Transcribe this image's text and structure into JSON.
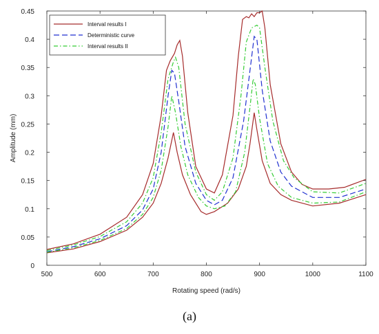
{
  "caption": "(a)",
  "chart_data": {
    "type": "line",
    "xlabel": "Rotating speed (rad/s)",
    "ylabel": "Amplitude (mm)",
    "xlim": [
      500,
      1100
    ],
    "ylim": [
      0,
      0.45
    ],
    "xticks": [
      500,
      600,
      700,
      800,
      900,
      1000,
      1100
    ],
    "yticks": [
      0,
      0.05,
      0.1,
      0.15,
      0.2,
      0.25,
      0.3,
      0.35,
      0.4,
      0.45
    ],
    "xtick_labels": [
      "500",
      "600",
      "700",
      "800",
      "900",
      "1000",
      "1100"
    ],
    "ytick_labels": [
      "0",
      "0.05",
      "0.1",
      "0.15",
      "0.2",
      "0.25",
      "0.3",
      "0.35",
      "0.4",
      "0.45"
    ],
    "grid": false,
    "legend_position": "top-left",
    "legend": [
      {
        "label": "Interval results I",
        "color": "#a52a2a",
        "style": "solid"
      },
      {
        "label": "Deterministic curve",
        "color": "#1f2fd0",
        "style": "dashed"
      },
      {
        "label": "Interval results II",
        "color": "#33cc33",
        "style": "dashdot"
      }
    ],
    "series": [
      {
        "name": "Interval results I",
        "bound": "upper",
        "color": "#a52a2a",
        "style": "solid",
        "points": [
          [
            500,
            0.028
          ],
          [
            550,
            0.038
          ],
          [
            600,
            0.055
          ],
          [
            650,
            0.085
          ],
          [
            680,
            0.125
          ],
          [
            700,
            0.18
          ],
          [
            715,
            0.265
          ],
          [
            725,
            0.345
          ],
          [
            732,
            0.362
          ],
          [
            740,
            0.375
          ],
          [
            745,
            0.39
          ],
          [
            750,
            0.398
          ],
          [
            755,
            0.37
          ],
          [
            765,
            0.27
          ],
          [
            780,
            0.175
          ],
          [
            800,
            0.135
          ],
          [
            815,
            0.128
          ],
          [
            830,
            0.16
          ],
          [
            850,
            0.265
          ],
          [
            860,
            0.37
          ],
          [
            868,
            0.435
          ],
          [
            875,
            0.44
          ],
          [
            880,
            0.438
          ],
          [
            885,
            0.445
          ],
          [
            890,
            0.44
          ],
          [
            895,
            0.447
          ],
          [
            900,
            0.447
          ],
          [
            905,
            0.45
          ],
          [
            910,
            0.42
          ],
          [
            920,
            0.32
          ],
          [
            940,
            0.215
          ],
          [
            960,
            0.165
          ],
          [
            980,
            0.143
          ],
          [
            1000,
            0.135
          ],
          [
            1030,
            0.135
          ],
          [
            1060,
            0.138
          ],
          [
            1100,
            0.152
          ]
        ]
      },
      {
        "name": "Interval results I",
        "bound": "lower",
        "color": "#a52a2a",
        "style": "solid",
        "points": [
          [
            500,
            0.022
          ],
          [
            550,
            0.029
          ],
          [
            600,
            0.042
          ],
          [
            650,
            0.062
          ],
          [
            680,
            0.085
          ],
          [
            700,
            0.11
          ],
          [
            715,
            0.145
          ],
          [
            728,
            0.19
          ],
          [
            738,
            0.235
          ],
          [
            745,
            0.2
          ],
          [
            755,
            0.16
          ],
          [
            770,
            0.125
          ],
          [
            790,
            0.095
          ],
          [
            800,
            0.09
          ],
          [
            815,
            0.095
          ],
          [
            840,
            0.11
          ],
          [
            860,
            0.135
          ],
          [
            875,
            0.175
          ],
          [
            882,
            0.215
          ],
          [
            890,
            0.27
          ],
          [
            895,
            0.24
          ],
          [
            905,
            0.185
          ],
          [
            920,
            0.145
          ],
          [
            940,
            0.125
          ],
          [
            960,
            0.115
          ],
          [
            1000,
            0.105
          ],
          [
            1050,
            0.11
          ],
          [
            1100,
            0.125
          ]
        ]
      },
      {
        "name": "Deterministic curve",
        "color": "#1f2fd0",
        "style": "dashed",
        "points": [
          [
            500,
            0.024
          ],
          [
            550,
            0.033
          ],
          [
            600,
            0.047
          ],
          [
            650,
            0.07
          ],
          [
            680,
            0.098
          ],
          [
            700,
            0.135
          ],
          [
            715,
            0.2
          ],
          [
            728,
            0.3
          ],
          [
            735,
            0.345
          ],
          [
            740,
            0.34
          ],
          [
            748,
            0.29
          ],
          [
            760,
            0.21
          ],
          [
            780,
            0.145
          ],
          [
            800,
            0.115
          ],
          [
            815,
            0.107
          ],
          [
            830,
            0.115
          ],
          [
            850,
            0.155
          ],
          [
            870,
            0.255
          ],
          [
            882,
            0.345
          ],
          [
            890,
            0.405
          ],
          [
            895,
            0.4
          ],
          [
            905,
            0.31
          ],
          [
            920,
            0.22
          ],
          [
            940,
            0.165
          ],
          [
            960,
            0.14
          ],
          [
            1000,
            0.12
          ],
          [
            1050,
            0.12
          ],
          [
            1100,
            0.135
          ]
        ]
      },
      {
        "name": "Interval results II",
        "bound": "upper",
        "color": "#33cc33",
        "style": "dashdot",
        "points": [
          [
            500,
            0.026
          ],
          [
            550,
            0.036
          ],
          [
            600,
            0.051
          ],
          [
            650,
            0.077
          ],
          [
            680,
            0.11
          ],
          [
            700,
            0.155
          ],
          [
            715,
            0.235
          ],
          [
            728,
            0.33
          ],
          [
            738,
            0.36
          ],
          [
            742,
            0.368
          ],
          [
            748,
            0.35
          ],
          [
            760,
            0.25
          ],
          [
            780,
            0.165
          ],
          [
            800,
            0.125
          ],
          [
            815,
            0.115
          ],
          [
            830,
            0.13
          ],
          [
            850,
            0.19
          ],
          [
            865,
            0.3
          ],
          [
            875,
            0.395
          ],
          [
            885,
            0.42
          ],
          [
            895,
            0.425
          ],
          [
            900,
            0.42
          ],
          [
            910,
            0.35
          ],
          [
            925,
            0.255
          ],
          [
            945,
            0.185
          ],
          [
            965,
            0.155
          ],
          [
            1000,
            0.13
          ],
          [
            1050,
            0.128
          ],
          [
            1100,
            0.145
          ]
        ]
      },
      {
        "name": "Interval results II",
        "bound": "lower",
        "color": "#33cc33",
        "style": "dashdot",
        "points": [
          [
            500,
            0.023
          ],
          [
            550,
            0.031
          ],
          [
            600,
            0.044
          ],
          [
            650,
            0.065
          ],
          [
            680,
            0.09
          ],
          [
            700,
            0.12
          ],
          [
            715,
            0.168
          ],
          [
            728,
            0.245
          ],
          [
            735,
            0.3
          ],
          [
            742,
            0.27
          ],
          [
            752,
            0.21
          ],
          [
            765,
            0.16
          ],
          [
            785,
            0.12
          ],
          [
            800,
            0.105
          ],
          [
            815,
            0.1
          ],
          [
            835,
            0.105
          ],
          [
            855,
            0.13
          ],
          [
            872,
            0.2
          ],
          [
            882,
            0.28
          ],
          [
            888,
            0.33
          ],
          [
            892,
            0.32
          ],
          [
            900,
            0.26
          ],
          [
            915,
            0.18
          ],
          [
            935,
            0.14
          ],
          [
            960,
            0.12
          ],
          [
            1000,
            0.11
          ],
          [
            1050,
            0.112
          ],
          [
            1100,
            0.13
          ]
        ]
      }
    ]
  }
}
